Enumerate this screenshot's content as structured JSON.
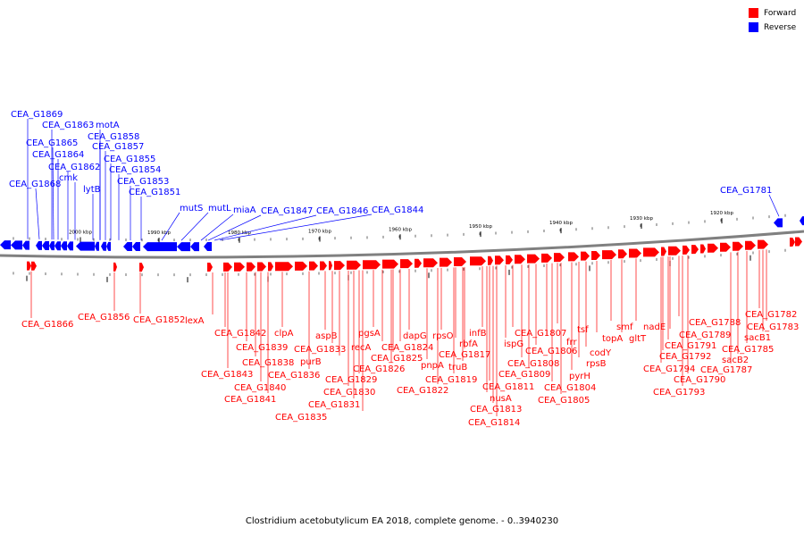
{
  "legend": {
    "forward": {
      "label": "Forward",
      "color": "#ff0000"
    },
    "reverse": {
      "label": "Reverse",
      "color": "#0000ff"
    }
  },
  "caption": "Clostridium acetobutylicum EA 2018, complete genome. - 0..3940230",
  "ticks": [
    "2000 kbp",
    "1990 kbp",
    "1980 kbp",
    "1970 kbp",
    "1960 kbp",
    "1950 kbp",
    "1940 kbp",
    "1930 kbp",
    "1920 kbp"
  ],
  "reverse_labels": [
    "CEA_G1869",
    "CEA_G1863",
    "motA",
    "CEA_G1858",
    "CEA_G1865",
    "CEA_G1857",
    "CEA_G1864",
    "CEA_G1855",
    "CEA_G1862",
    "CEA_G1854",
    "cmk",
    "CEA_G1868",
    "CEA_G1853",
    "lytB",
    "CEA_G1851",
    "mutS",
    "mutL",
    "miaA",
    "CEA_G1847",
    "CEA_G1846",
    "CEA_G1844",
    "CEA_G1781"
  ],
  "forward_labels": [
    "CEA_G1866",
    "CEA_G1856",
    "CEA_G1852",
    "lexA",
    "CEA_G1842",
    "clpA",
    "CEA_G1839",
    "CEA_G1838",
    "CEA_G1843",
    "CEA_G1840",
    "CEA_G1841",
    "CEA_G1836",
    "aspB",
    "CEA_G1833",
    "purB",
    "CEA_G1830",
    "CEA_G1829",
    "CEA_G1831",
    "CEA_G1835",
    "pgsA",
    "recA",
    "CEA_G1826",
    "dapG",
    "CEA_G1824",
    "CEA_G1825",
    "pnpA",
    "CEA_G1822",
    "rpsO",
    "rbfA",
    "CEA_G1817",
    "truB",
    "CEA_G1819",
    "infB",
    "nusA",
    "CEA_G1811",
    "CEA_G1813",
    "CEA_G1814",
    "ispG",
    "CEA_G1807",
    "CEA_G1808",
    "CEA_G1809",
    "CEA_G1806",
    "frr",
    "tsf",
    "CEA_G1804",
    "CEA_G1805",
    "pyrH",
    "rpsB",
    "codY",
    "topA",
    "smf",
    "gltT",
    "nadE",
    "CEA_G1788",
    "CEA_G1789",
    "CEA_G1791",
    "CEA_G1792",
    "CEA_G1794",
    "CEA_G1790",
    "CEA_G1793",
    "CEA_G1782",
    "CEA_G1783",
    "CEA_G1785",
    "sacB1",
    "sacB2",
    "CEA_G1787"
  ]
}
